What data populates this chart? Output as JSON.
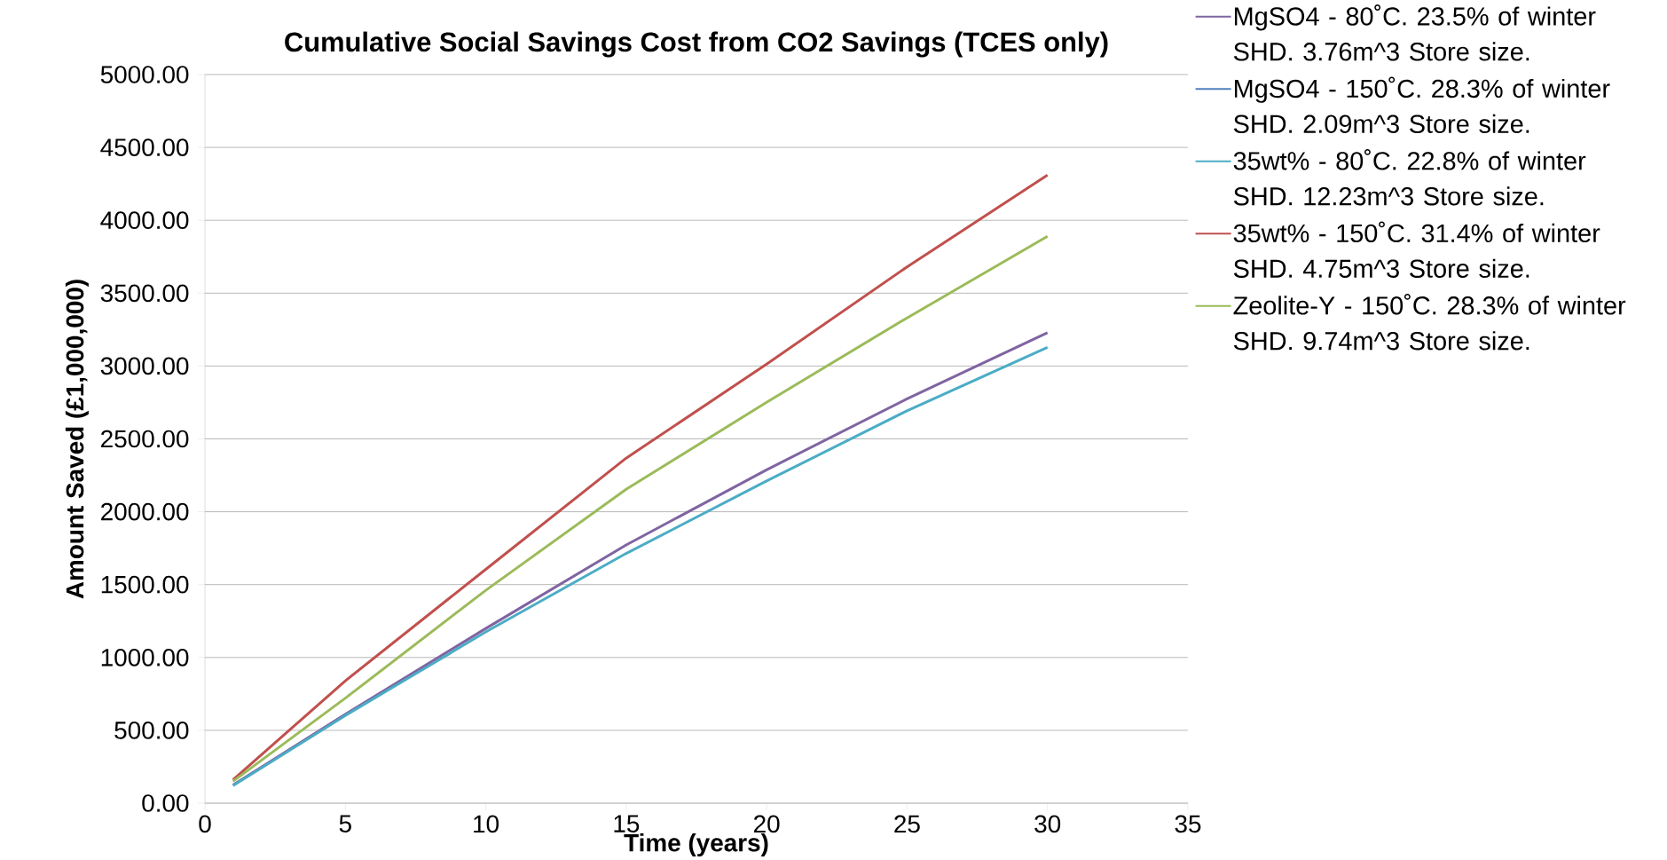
{
  "chart_data": {
    "type": "line",
    "title": "Cumulative Social Savings Cost from CO2 Savings (TCES only)",
    "xlabel": "Time (years)",
    "ylabel": "Amount Saved (£1,000,000)",
    "x": [
      1,
      5,
      10,
      15,
      20,
      25,
      30
    ],
    "series": [
      {
        "name": "MgSO4 - 80˚C. 23.5% of winter SHD.  3.76m^3 Store size.",
        "color": "#8064a2",
        "values": [
          125,
          611,
          1199,
          1772,
          2288,
          2775,
          3229
        ]
      },
      {
        "name": "MgSO4 - 150˚C. 28.3% of winter SHD.  2.09m^3 Store size.",
        "color": "#4f81bd",
        "values": [
          null,
          null,
          null,
          null,
          null,
          null,
          null
        ]
      },
      {
        "name": "35wt% - 80˚C. 22.8% of winter SHD.  12.23m^3 Store size.",
        "color": "#4bacc6",
        "values": [
          120,
          602,
          1175,
          1714,
          2211,
          2693,
          3128
        ]
      },
      {
        "name": "35wt% - 150˚C. 31.4% of winter SHD.  4.75m^3 Store size.",
        "color": "#c0504d",
        "values": [
          160,
          840,
          1605,
          2368,
          3013,
          3680,
          4310
        ]
      },
      {
        "name": "Zeolite-Y - 150˚C. 28.3% of winter SHD.  9.74m^3 Store size.",
        "color": "#9bbb59",
        "values": [
          150,
          721,
          1461,
          2154,
          2751,
          3330,
          3890
        ]
      }
    ],
    "xlim": [
      0,
      35
    ],
    "xticks": [
      0,
      5,
      10,
      15,
      20,
      25,
      30,
      35
    ],
    "ylim": [
      0,
      5000
    ],
    "yticks": [
      {
        "value": 0,
        "label": "0.00"
      },
      {
        "value": 500,
        "label": "500.00"
      },
      {
        "value": 1000,
        "label": "1000.00"
      },
      {
        "value": 1500,
        "label": "1500.00"
      },
      {
        "value": 2000,
        "label": "2000.00"
      },
      {
        "value": 2500,
        "label": "2500.00"
      },
      {
        "value": 3000,
        "label": "3000.00"
      },
      {
        "value": 3500,
        "label": "3500.00"
      },
      {
        "value": 4000,
        "label": "4000.00"
      },
      {
        "value": 4500,
        "label": "4500.00"
      },
      {
        "value": 5000,
        "label": "5000.00"
      }
    ],
    "grid": "y",
    "legend": "right",
    "line_style": "solid"
  }
}
